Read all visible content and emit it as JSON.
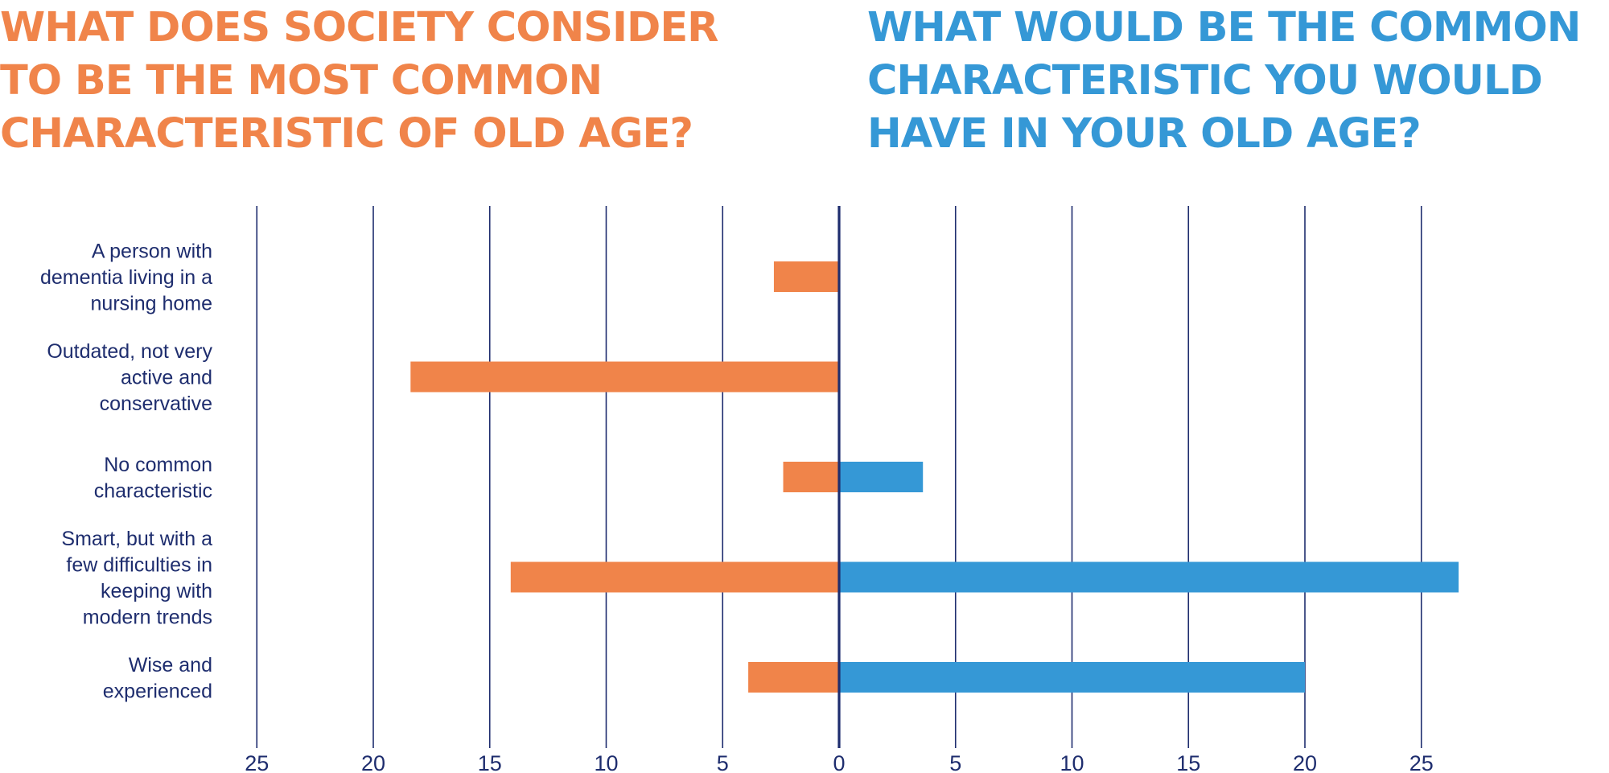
{
  "colors": {
    "left": "#F0844A",
    "right": "#3598D6",
    "axis": "#1E2D6E",
    "text": "#1E2D6E"
  },
  "chart_data": {
    "type": "bar",
    "orientation": "horizontal-diverging",
    "titles": {
      "left": [
        "WHAT DOES SOCIETY CONSIDER",
        "TO BE THE MOST COMMON",
        "CHARACTERISTIC OF OLD AGE?"
      ],
      "right": [
        "WHAT WOULD BE THE COMMON",
        "CHARACTERISTIC YOU WOULD",
        "HAVE IN YOUR OLD AGE?"
      ]
    },
    "categories": [
      [
        "A person with",
        "dementia living in a",
        "nursing home"
      ],
      [
        "Outdated, not very",
        "active and",
        "conservative"
      ],
      [
        "No common",
        "characteristic"
      ],
      [
        "Smart, but with a",
        "few difficulties in",
        "keeping with",
        "modern trends"
      ],
      [
        "Wise and",
        "experienced"
      ]
    ],
    "series": [
      {
        "side": "left",
        "values": [
          2.8,
          18.4,
          2.4,
          14.1,
          3.9
        ]
      },
      {
        "side": "right",
        "values": [
          0,
          0,
          3.6,
          26.6,
          20.0
        ]
      }
    ],
    "xlim": [
      -25,
      25
    ],
    "xticks": [
      -25,
      -20,
      -15,
      -10,
      -5,
      0,
      5,
      10,
      15,
      20,
      25
    ],
    "tick_labels": [
      "25",
      "20",
      "15",
      "10",
      "5",
      "0",
      "5",
      "10",
      "15",
      "20",
      "25"
    ],
    "grid": true
  }
}
